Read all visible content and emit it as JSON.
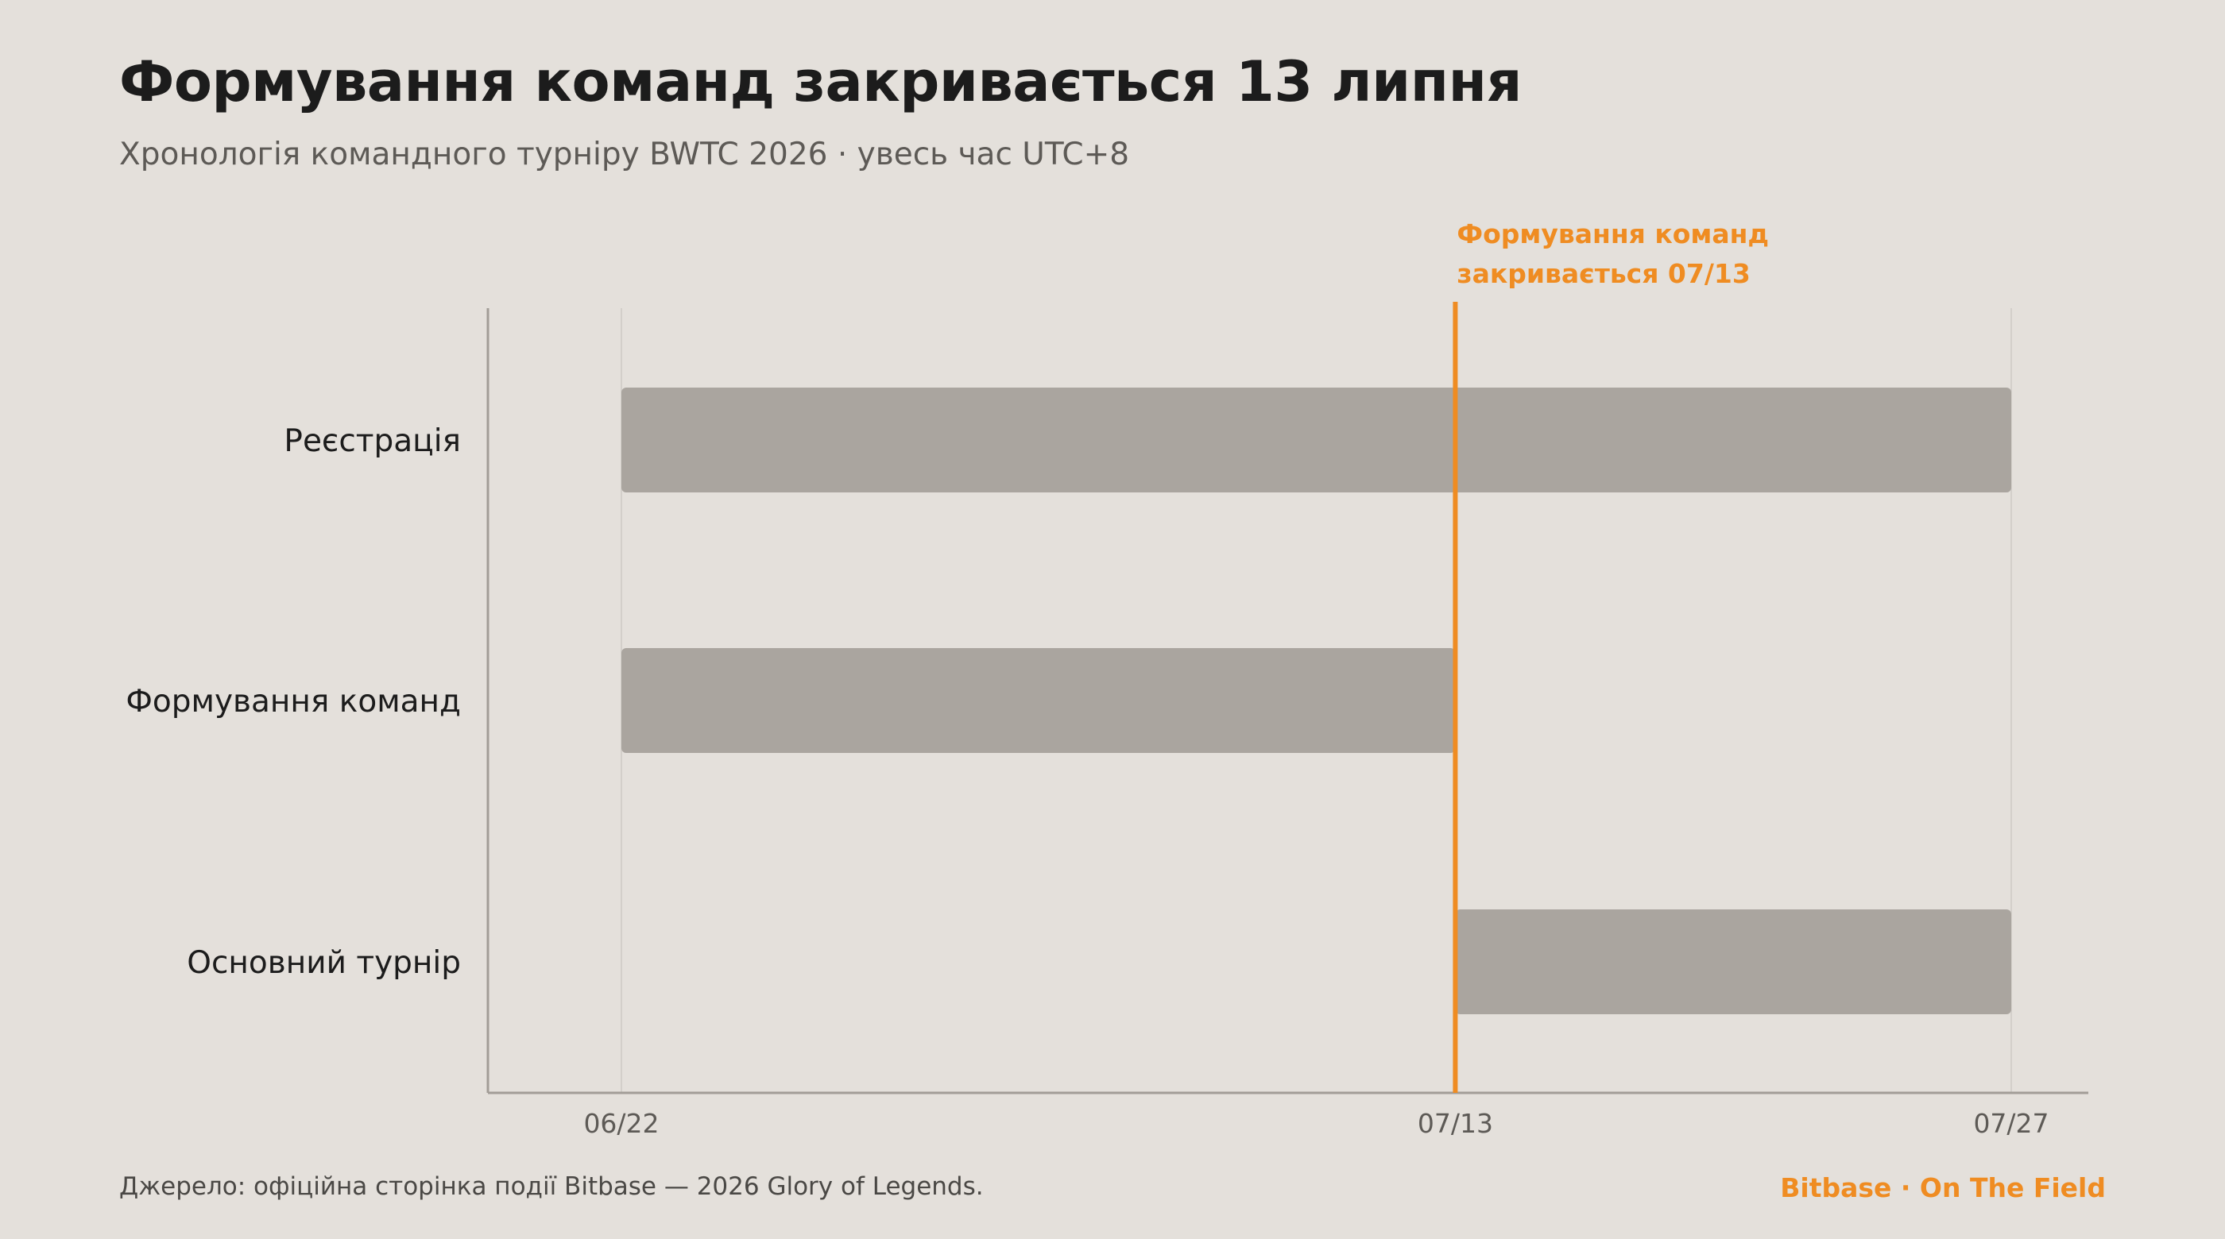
{
  "header": {
    "title": "Формування команд закривається 13 липня",
    "subtitle": "Хронологія командного турніру BWTC 2026 · увесь час UTC+8"
  },
  "footer": {
    "source": "Джерело: офіційна сторінка події Bitbase — 2026 Glory of Legends.",
    "brand": "Bitbase · On The Field"
  },
  "colors": {
    "background": "#e4e0db",
    "bar": "#aaa59f",
    "accent": "#ef8c22",
    "axis": "#a29d97",
    "grid": "#d3cfca"
  },
  "chart_data": {
    "type": "bar",
    "orientation": "horizontal-timeline",
    "x_axis": {
      "ticks": [
        "06/22",
        "07/13",
        "07/27"
      ],
      "range": [
        "2026-06-22",
        "2026-07-27"
      ]
    },
    "series": [
      {
        "label": "Реєстрація",
        "start": "2026-06-22",
        "end": "2026-07-27"
      },
      {
        "label": "Формування команд",
        "start": "2026-06-22",
        "end": "2026-07-13"
      },
      {
        "label": "Основний турнір",
        "start": "2026-07-13",
        "end": "2026-07-27"
      }
    ],
    "annotation": {
      "date": "2026-07-13",
      "lines": [
        "Формування команд",
        "закривається 07/13"
      ]
    },
    "grid": true
  }
}
